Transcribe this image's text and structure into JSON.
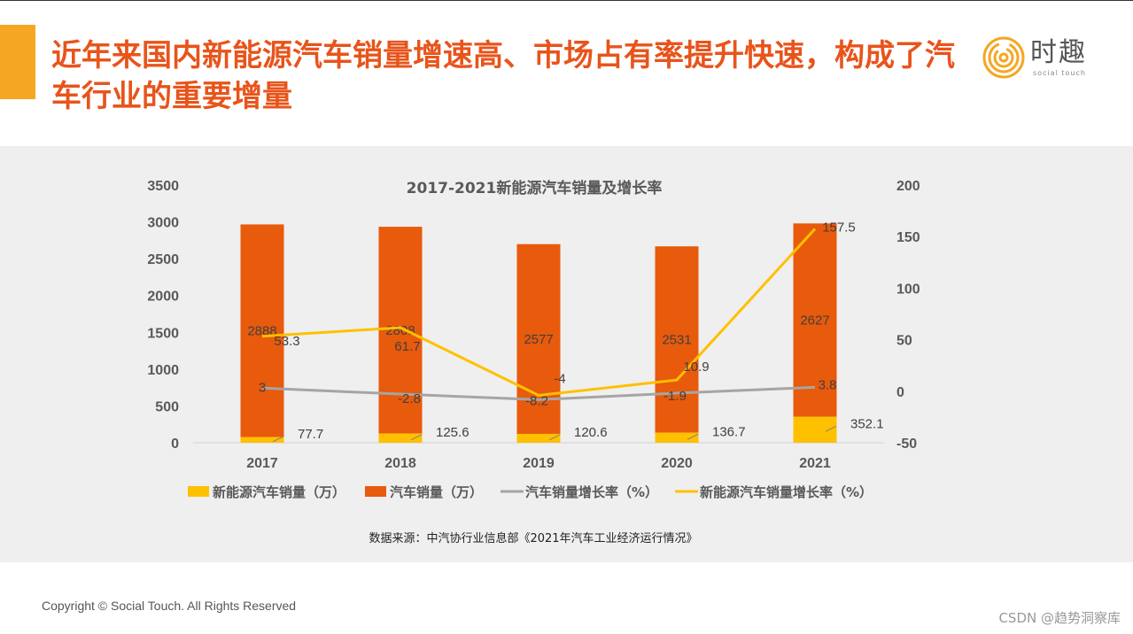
{
  "header": {
    "title": "近年来国内新能源汽车销量增速高、市场占有率提升快速，构成了汽车行业的重要增量",
    "logo_text": "时趣",
    "logo_sub": "social touch"
  },
  "colors": {
    "accent": "#f5a623",
    "title": "#e8541b",
    "bar_total": "#e85a0c",
    "bar_nev": "#ffc000",
    "line_total": "#a5a5a5",
    "line_nev": "#ffc000",
    "panel_bg": "#efefef"
  },
  "chart_data": {
    "type": "bar",
    "title": "2017-2021新能源汽车销量及增长率",
    "categories": [
      "2017",
      "2018",
      "2019",
      "2020",
      "2021"
    ],
    "series": [
      {
        "name": "新能源汽车销量（万）",
        "kind": "bar",
        "axis": "left",
        "values": [
          77.7,
          125.6,
          120.6,
          136.7,
          352.1
        ]
      },
      {
        "name": "汽车销量（万）",
        "kind": "bar",
        "axis": "left",
        "values": [
          2888,
          2808,
          2577,
          2531,
          2627
        ]
      },
      {
        "name": "汽车销量增长率（%）",
        "kind": "line",
        "axis": "right",
        "values": [
          3,
          -2.8,
          -8.2,
          -1.9,
          3.8
        ]
      },
      {
        "name": "新能源汽车销量增长率（%）",
        "kind": "line",
        "axis": "right",
        "values": [
          53.3,
          61.7,
          -4,
          10.9,
          157.5
        ]
      }
    ],
    "y_left": {
      "min": 0,
      "max": 3500,
      "ticks": [
        0,
        500,
        1000,
        1500,
        2000,
        2500,
        3000,
        3500
      ]
    },
    "y_right": {
      "min": -50,
      "max": 200,
      "ticks": [
        -50,
        0,
        50,
        100,
        150,
        200
      ]
    },
    "legend_position": "bottom",
    "source": "数据来源：中汽协行业信息部《2021年汽车工业经济运行情况》"
  },
  "footer": {
    "copyright": "Copyright © Social Touch. All Rights Reserved",
    "watermark": "CSDN @趋势洞察库"
  }
}
